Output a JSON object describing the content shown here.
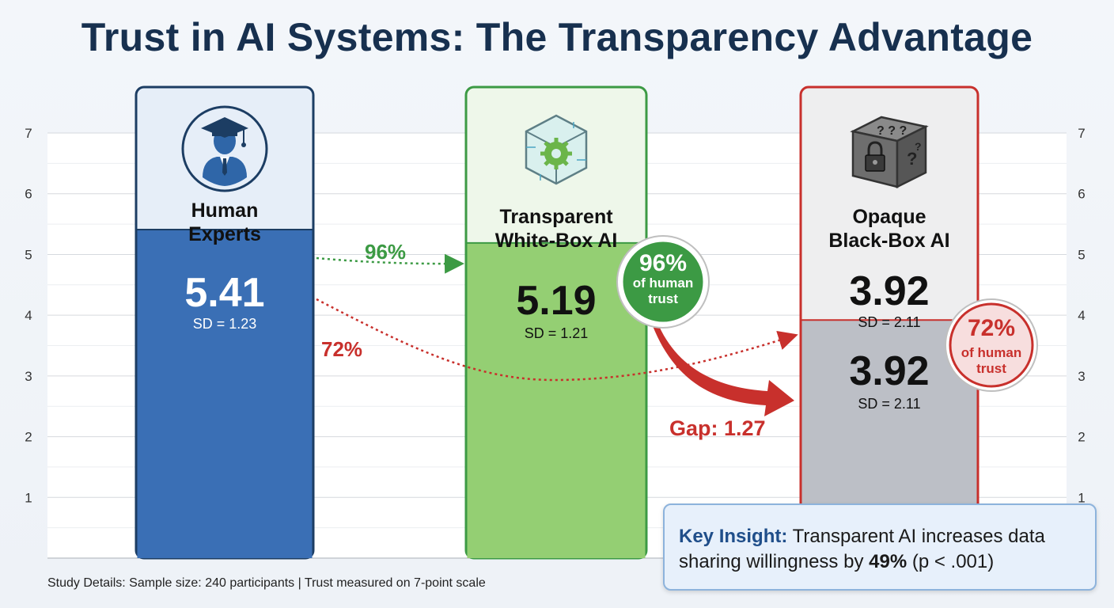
{
  "title": "Trust in AI Systems: The Transparency Advantage",
  "chart_data": {
    "type": "bar",
    "title": "Trust in AI Systems: The Transparency Advantage",
    "categories": [
      "Human Experts",
      "Transparent White-Box AI",
      "Opaque Black-Box AI"
    ],
    "values": [
      5.41,
      5.19,
      3.92
    ],
    "sd_labels": [
      "SD = 1.23",
      "SD = 1.21",
      "SD = 2.11"
    ],
    "value_labels": [
      "5.41",
      "5.19",
      "3.92"
    ],
    "ylim": [
      0,
      7.6
    ],
    "yticks": [
      1,
      2,
      3,
      4,
      5,
      6,
      7
    ],
    "grid": true,
    "colors": {
      "human": "#3a6fb5",
      "transparent": "#94cf73",
      "opaque": "#bcbfc6",
      "green": "#3c9a44",
      "red": "#c8302c"
    },
    "annotations": {
      "flow_transparent": "96%",
      "flow_opaque": "72%",
      "badge_transparent": {
        "pct": "96%",
        "line1": "of human",
        "line2": "trust"
      },
      "badge_opaque": {
        "pct": "72%",
        "line1": "of human",
        "line2": "trust"
      },
      "gap": "Gap: 1.27",
      "opaque_repeat": {
        "value": "3.92",
        "sd": "SD = 2.11"
      }
    }
  },
  "footnote": "Study Details: Sample size: 240 participants | Trust measured on 7-point scale",
  "insight": {
    "lead": "Key Insight:",
    "text1": " Transparent AI increases data sharing willingness by ",
    "highlight": "49%",
    "text2": " (p < .001)"
  },
  "icons": [
    "graduate-icon",
    "glass-cube-gear-icon",
    "locked-mystery-box-icon"
  ]
}
